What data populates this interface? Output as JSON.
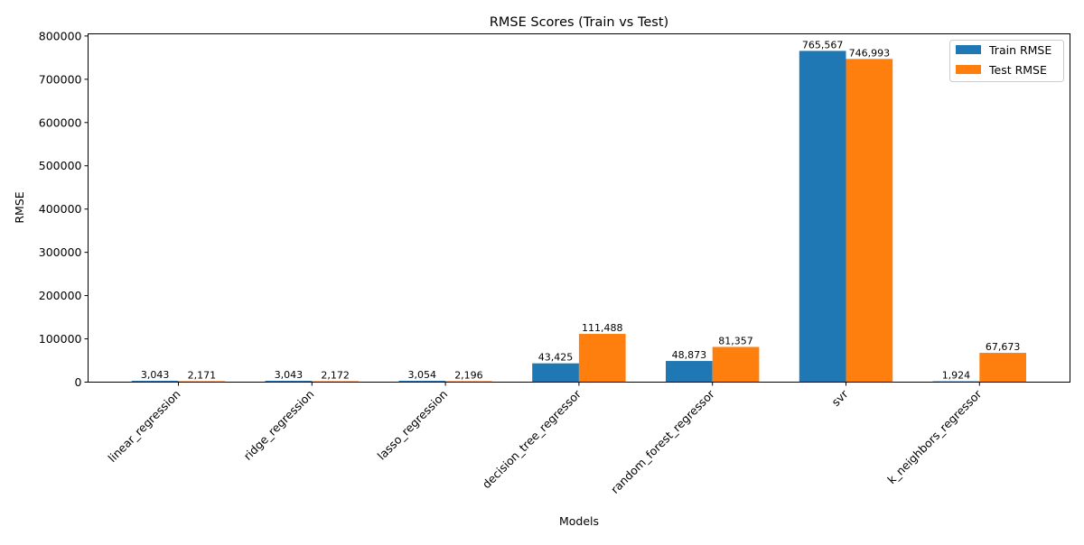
{
  "chart_data": {
    "type": "bar",
    "title": "RMSE Scores (Train vs Test)",
    "xlabel": "Models",
    "ylabel": "RMSE",
    "categories": [
      "linear_regression",
      "ridge_regression",
      "lasso_regression",
      "decision_tree_regressor",
      "random_forest_regressor",
      "svr",
      "k_neighbors_regressor"
    ],
    "series": [
      {
        "name": "Train RMSE",
        "color": "#1f77b4",
        "values": [
          3043,
          3043,
          3054,
          43425,
          48873,
          765567,
          1924
        ],
        "labels": [
          "3,043",
          "3,043",
          "3,054",
          "43,425",
          "48,873",
          "765,567",
          "1,924"
        ]
      },
      {
        "name": "Test RMSE",
        "color": "#ff7f0e",
        "values": [
          2171,
          2172,
          2196,
          111488,
          81357,
          746993,
          67673
        ],
        "labels": [
          "2,171",
          "2,172",
          "2,196",
          "111,488",
          "81,357",
          "746,993",
          "67,673"
        ]
      }
    ],
    "ylim": [
      0,
      805000
    ],
    "yticks": [
      0,
      100000,
      200000,
      300000,
      400000,
      500000,
      600000,
      700000,
      800000
    ],
    "ytick_labels": [
      "0",
      "100000",
      "200000",
      "300000",
      "400000",
      "500000",
      "600000",
      "700000",
      "800000"
    ],
    "grid": false,
    "legend_position": "top-right"
  }
}
